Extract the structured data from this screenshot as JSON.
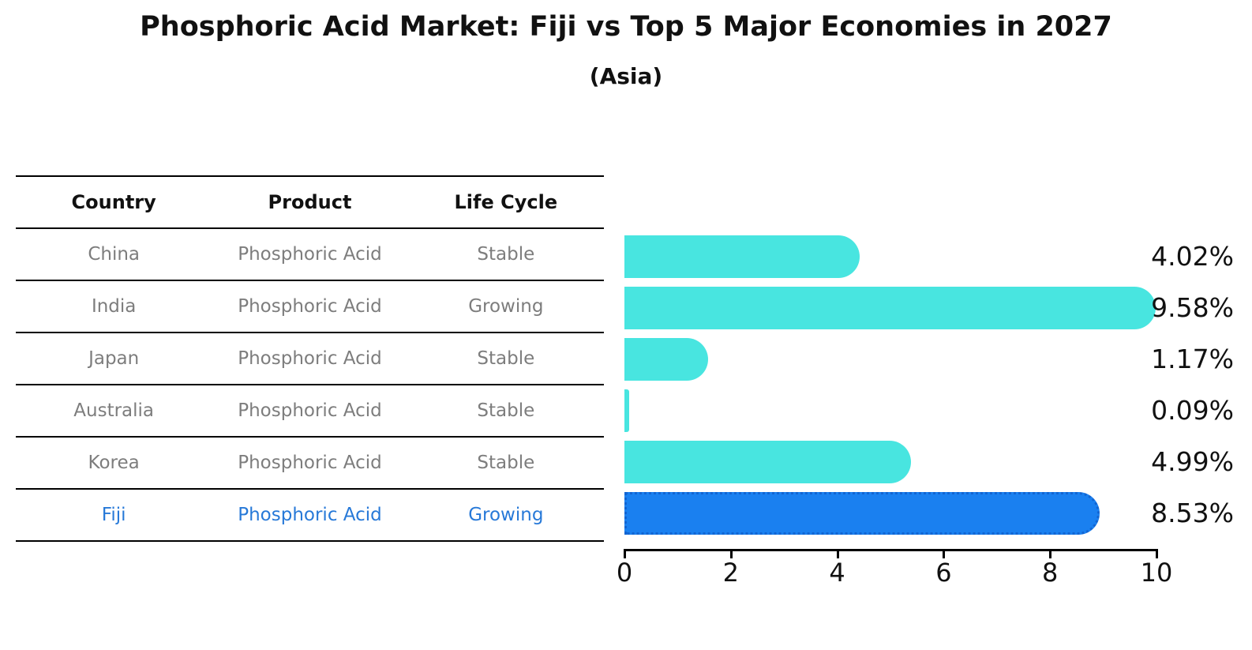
{
  "title": "Phosphoric Acid Market: Fiji vs Top 5 Major Economies in 2027",
  "subtitle": "(Asia)",
  "table": {
    "headers": [
      "Country",
      "Product",
      "Life Cycle"
    ],
    "rows": [
      {
        "country": "China",
        "product": "Phosphoric Acid",
        "life_cycle": "Stable",
        "highlight": false
      },
      {
        "country": "India",
        "product": "Phosphoric Acid",
        "life_cycle": "Growing",
        "highlight": false
      },
      {
        "country": "Japan",
        "product": "Phosphoric Acid",
        "life_cycle": "Stable",
        "highlight": false
      },
      {
        "country": "Australia",
        "product": "Phosphoric Acid",
        "life_cycle": "Stable",
        "highlight": false
      },
      {
        "country": "Korea",
        "product": "Phosphoric Acid",
        "life_cycle": "Stable",
        "highlight": false
      },
      {
        "country": "Fiji",
        "product": "Phosphoric Acid",
        "life_cycle": "Growing",
        "highlight": true
      }
    ]
  },
  "chart_data": {
    "type": "bar",
    "orientation": "horizontal",
    "title": "Phosphoric Acid Market: Fiji vs Top 5 Major Economies in 2027 (Asia)",
    "categories": [
      "China",
      "India",
      "Japan",
      "Australia",
      "Korea",
      "Fiji"
    ],
    "values": [
      4.02,
      9.58,
      1.17,
      0.09,
      4.99,
      8.53
    ],
    "value_labels": [
      "4.02%",
      "9.58%",
      "1.17%",
      "0.09%",
      "4.99%",
      "8.53%"
    ],
    "xlim": [
      0,
      10
    ],
    "x_ticks": [
      "0",
      "2",
      "4",
      "6",
      "8",
      "10"
    ],
    "grid": false,
    "legend": "none",
    "highlight_index": 5,
    "colors": {
      "default_bar": "#48E5E0",
      "highlight_bar": "#1A80F0",
      "highlight_border": "#1265D2",
      "highlight_text": "#2779D8",
      "muted_text": "#7D7D7D",
      "axis": "#000000"
    }
  }
}
